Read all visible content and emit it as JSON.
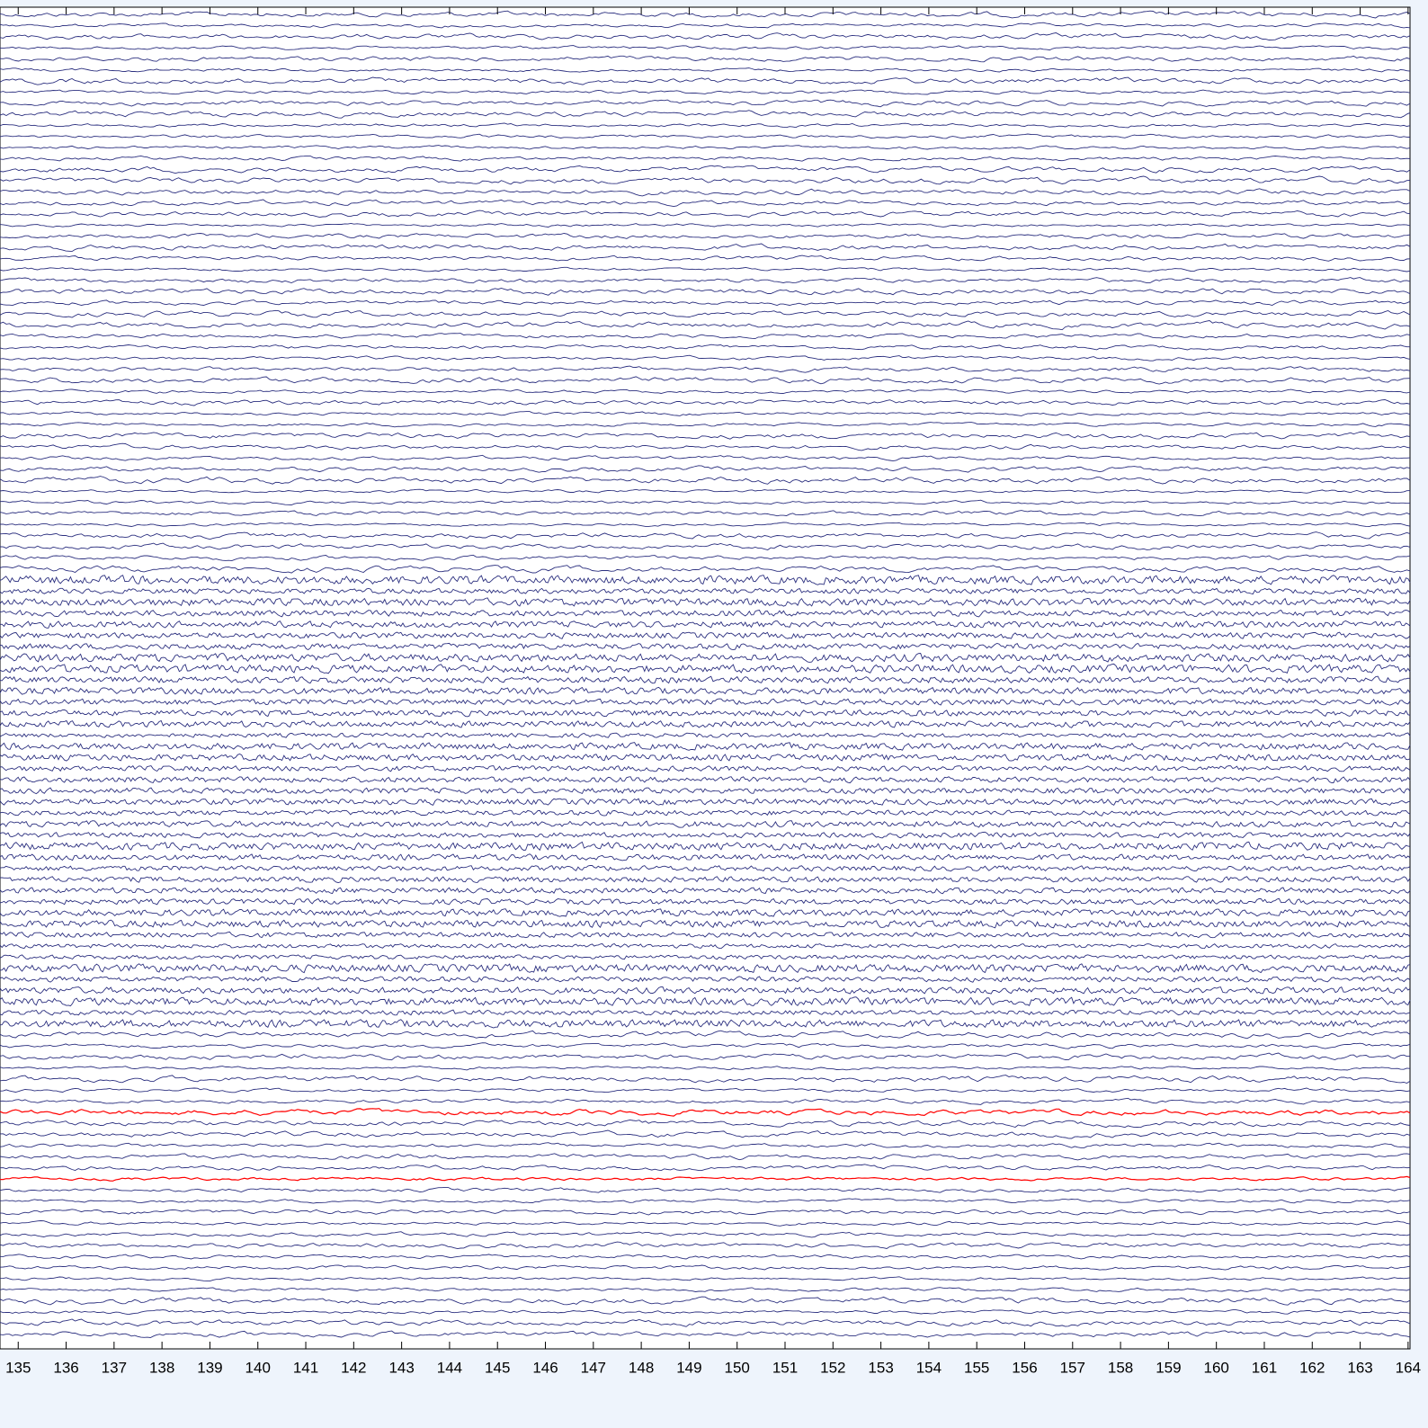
{
  "viewer": {
    "trace_color": "#2b2f7f",
    "highlight_color": "#ff0000",
    "xlim": [
      134.62,
      164.04
    ],
    "xticks": [
      135,
      136,
      137,
      138,
      139,
      140,
      141,
      142,
      143,
      144,
      145,
      146,
      147,
      148,
      149,
      150,
      151,
      152,
      153,
      154,
      155,
      156,
      157,
      158,
      159,
      160,
      161,
      162,
      163,
      164
    ]
  }
}
